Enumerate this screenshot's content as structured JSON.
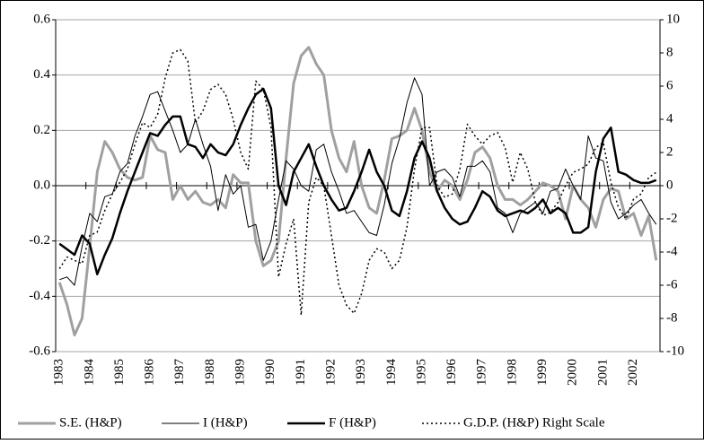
{
  "chart_data": {
    "type": "line",
    "categories": [
      "1983",
      null,
      null,
      null,
      "1984",
      null,
      null,
      null,
      "1985",
      null,
      null,
      null,
      "1986",
      null,
      null,
      null,
      "1987",
      null,
      null,
      null,
      "1988",
      null,
      null,
      null,
      "1989",
      null,
      null,
      null,
      "1990",
      null,
      null,
      null,
      "1991",
      null,
      null,
      null,
      "1992",
      null,
      null,
      null,
      "1993",
      null,
      null,
      null,
      "1994",
      null,
      null,
      null,
      "1995",
      null,
      null,
      null,
      "1996",
      null,
      null,
      null,
      "1997",
      null,
      null,
      null,
      "1998",
      null,
      null,
      null,
      "1999",
      null,
      null,
      null,
      "2000",
      null,
      null,
      null,
      "2001",
      null,
      null,
      null,
      "2002",
      null,
      null,
      null
    ],
    "ylim": [
      -0.6,
      0.6
    ],
    "yticks": [
      -0.6,
      -0.4,
      -0.2,
      {
        "value": 0,
        "label": "0.0"
      },
      0.2,
      0.4,
      0.6
    ],
    "y2lim": [
      -10,
      10
    ],
    "y2ticks": [
      -10,
      -8,
      -6,
      -4,
      -2,
      0,
      2,
      4,
      6,
      8,
      10
    ],
    "grid": true,
    "legend": "bottom",
    "series": [
      {
        "name": "S.E. (H&P)",
        "color": "#a0a0a0",
        "width": 3,
        "dashed": false,
        "values": [
          -0.35,
          -0.43,
          -0.54,
          -0.48,
          -0.22,
          0.05,
          0.16,
          0.12,
          0.06,
          0.03,
          0.02,
          0.03,
          0.18,
          0.13,
          0.12,
          -0.05,
          0.0,
          -0.05,
          -0.02,
          -0.06,
          -0.07,
          -0.05,
          -0.08,
          0.04,
          0.01,
          0.01,
          -0.2,
          -0.29,
          -0.27,
          -0.2,
          0.1,
          0.37,
          0.47,
          0.5,
          0.44,
          0.4,
          0.2,
          0.1,
          0.05,
          0.16,
          0.0,
          -0.08,
          -0.1,
          0.02,
          0.17,
          0.18,
          0.2,
          0.28,
          0.2,
          0.05,
          -0.02,
          0.02,
          0.0,
          -0.05,
          0.02,
          0.12,
          0.14,
          0.1,
          0.0,
          -0.05,
          -0.05,
          -0.07,
          -0.05,
          -0.02,
          0.01,
          0.0,
          -0.02,
          -0.12,
          0.0,
          -0.05,
          -0.08,
          -0.15,
          -0.05,
          -0.01,
          -0.02,
          -0.12,
          -0.1,
          -0.18,
          -0.11,
          -0.27
        ]
      },
      {
        "name": "I (H&P)",
        "color": "#000000",
        "width": 1,
        "dashed": false,
        "values": [
          -0.34,
          -0.33,
          -0.36,
          -0.22,
          -0.1,
          -0.13,
          -0.04,
          -0.03,
          0.05,
          0.08,
          0.18,
          0.25,
          0.33,
          0.34,
          0.27,
          0.2,
          0.12,
          0.15,
          0.24,
          0.15,
          0.07,
          -0.09,
          0.04,
          -0.03,
          0.0,
          -0.15,
          -0.14,
          -0.27,
          -0.2,
          -0.05,
          0.09,
          0.06,
          0.0,
          -0.02,
          0.13,
          0.15,
          0.05,
          -0.02,
          -0.1,
          -0.09,
          -0.13,
          -0.17,
          -0.18,
          -0.07,
          0.08,
          0.17,
          0.3,
          0.39,
          0.33,
          0.0,
          0.05,
          0.06,
          0.03,
          -0.04,
          0.07,
          0.07,
          0.09,
          0.05,
          -0.08,
          -0.1,
          -0.17,
          -0.1,
          -0.08,
          -0.06,
          -0.1,
          -0.02,
          -0.01,
          0.06,
          0.0,
          -0.05,
          0.18,
          0.1,
          0.09,
          -0.06,
          -0.12,
          -0.1,
          -0.07,
          -0.05,
          -0.1,
          -0.14
        ]
      },
      {
        "name": "F (H&P)",
        "color": "#000000",
        "width": 2.5,
        "dashed": false,
        "values": [
          -0.21,
          -0.23,
          -0.25,
          -0.18,
          -0.21,
          -0.32,
          -0.25,
          -0.19,
          -0.1,
          -0.02,
          0.05,
          0.12,
          0.19,
          0.18,
          0.22,
          0.25,
          0.25,
          0.15,
          0.14,
          0.1,
          0.15,
          0.12,
          0.11,
          0.15,
          0.22,
          0.28,
          0.33,
          0.35,
          0.28,
          0.0,
          -0.07,
          0.05,
          0.1,
          0.15,
          0.07,
          0.0,
          -0.05,
          -0.09,
          -0.08,
          -0.02,
          0.05,
          0.13,
          0.05,
          0.0,
          -0.09,
          -0.11,
          -0.02,
          0.1,
          0.16,
          0.1,
          -0.02,
          -0.08,
          -0.12,
          -0.14,
          -0.13,
          -0.08,
          -0.02,
          -0.04,
          -0.09,
          -0.11,
          -0.1,
          -0.09,
          -0.1,
          -0.08,
          -0.05,
          -0.1,
          -0.08,
          -0.1,
          -0.17,
          -0.17,
          -0.15,
          0.05,
          0.17,
          0.21,
          0.05,
          0.04,
          0.02,
          0.01,
          0.01,
          0.02
        ]
      },
      {
        "name": "G.D.P. (H&P) Right Scale",
        "color": "#000000",
        "width": 1.5,
        "dashed": true,
        "axis": "y2",
        "values": [
          -5,
          -4.3,
          -4.5,
          -4.7,
          -3,
          -2.8,
          -1.5,
          -0.5,
          0.2,
          1,
          2.5,
          3.8,
          3.5,
          4.3,
          6.5,
          8,
          8.2,
          7.5,
          3.8,
          4.5,
          5.8,
          6.1,
          5.5,
          4,
          2,
          1,
          6.3,
          5.8,
          3.5,
          -5.5,
          -3.5,
          -2,
          -7.8,
          -1,
          0.5,
          0,
          -3,
          -6,
          -7.2,
          -7.7,
          -6.5,
          -4.5,
          -3.8,
          -4,
          -5,
          -4.5,
          -2.5,
          1,
          3.5,
          3.5,
          0,
          -0.7,
          -0.5,
          1,
          3.7,
          3,
          2.5,
          3,
          3.2,
          2.3,
          0.2,
          2,
          1,
          -1,
          -1.8,
          -1.6,
          -1,
          0,
          0.8,
          1,
          1.3,
          2.3,
          2.6,
          0.2,
          -1.3,
          -2,
          -0.8,
          -0.5,
          0.5,
          0.8
        ]
      }
    ]
  }
}
